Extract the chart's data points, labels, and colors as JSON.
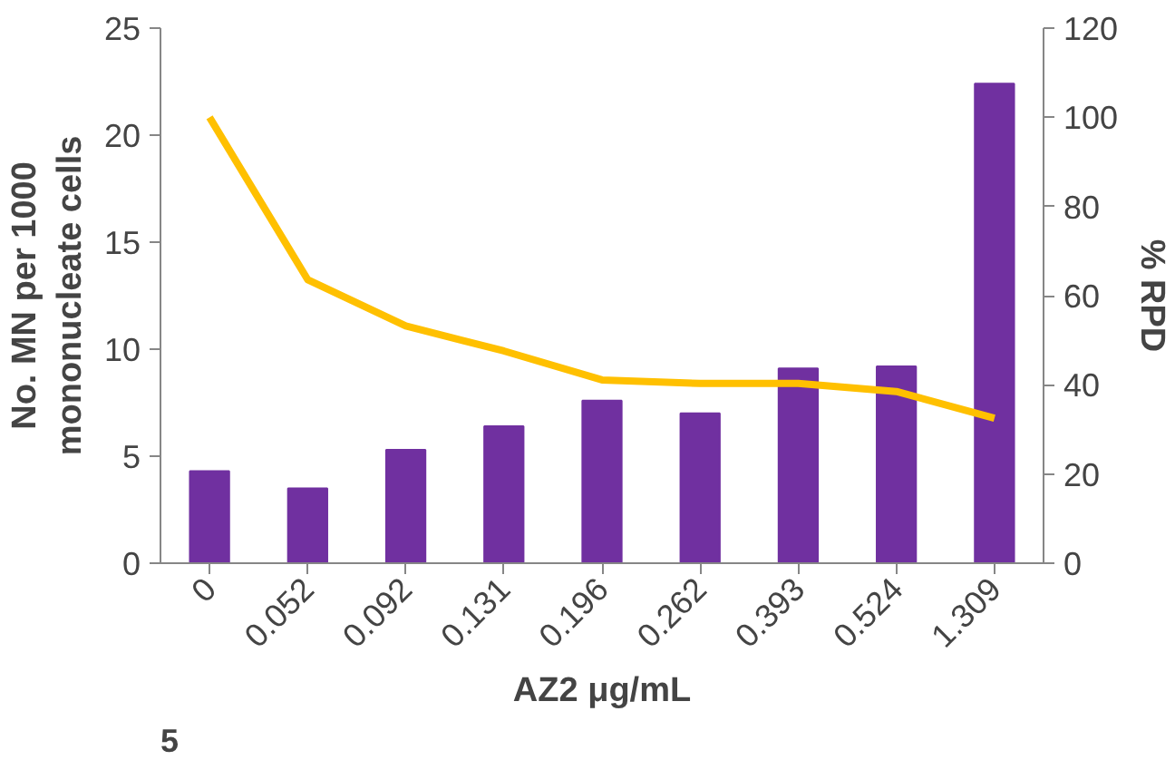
{
  "chart_data": {
    "type": "bar",
    "xlabel": "AZ2 μg/mL",
    "ylabel": "No. MN per 1000\nmononucleate cells",
    "y2label": "% RPD",
    "categories": [
      "0",
      "0.052",
      "0.092",
      "0.131",
      "0.196",
      "0.262",
      "0.393",
      "0.524",
      "1.309"
    ],
    "series": [
      {
        "color": "#7030a0",
        "values": [
          4.3,
          3.5,
          5.3,
          6.4,
          7.6,
          7.0,
          9.1,
          9.2,
          22.4
        ]
      },
      {
        "type": "line",
        "axis": "y2",
        "color": "#ffc000",
        "values": [
          100,
          63.6,
          53.2,
          47.6,
          41.1,
          40.3,
          40.3,
          38.5,
          32.5
        ]
      }
    ],
    "ylim": [
      0,
      25
    ],
    "yticks": [
      0,
      5,
      10,
      15,
      20,
      25
    ],
    "y2lim": [
      0,
      120
    ],
    "y2ticks": [
      0,
      20,
      40,
      60,
      80,
      100,
      120
    ],
    "grid": false,
    "annotations": [
      "5"
    ]
  }
}
